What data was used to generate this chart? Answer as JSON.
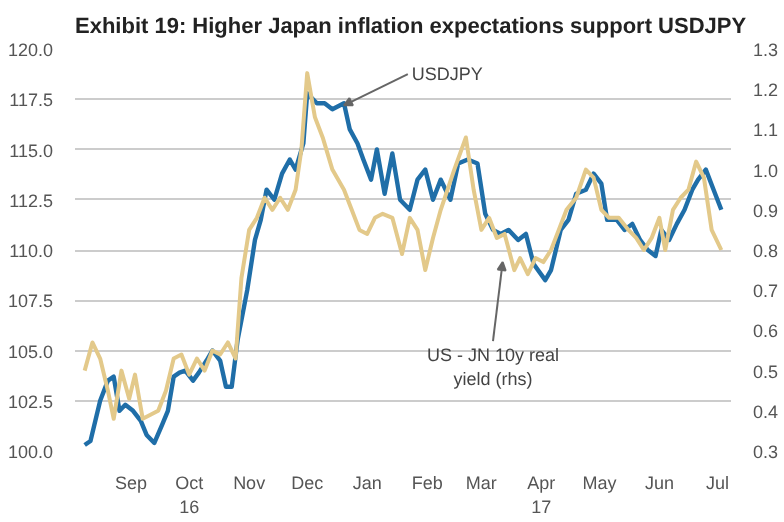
{
  "chart_data": {
    "type": "line",
    "title": "Exhibit 19: Higher Japan inflation expectations support USDJPY",
    "xlim": [
      "2016-08-17",
      "2017-07-22"
    ],
    "xticks": [
      {
        "value": "2016-09-15",
        "label": "Sep"
      },
      {
        "value": "2016-10-15",
        "label": "Oct\n16"
      },
      {
        "value": "2016-11-15",
        "label": "Nov"
      },
      {
        "value": "2016-12-15",
        "label": "Dec"
      },
      {
        "value": "2017-01-15",
        "label": "Jan"
      },
      {
        "value": "2017-02-15",
        "label": "Feb"
      },
      {
        "value": "2017-03-15",
        "label": "Mar"
      },
      {
        "value": "2017-04-15",
        "label": "Apr\n17"
      },
      {
        "value": "2017-05-15",
        "label": "May"
      },
      {
        "value": "2017-06-15",
        "label": "Jun"
      },
      {
        "value": "2017-07-15",
        "label": "Jul"
      }
    ],
    "ylim": [
      100,
      120
    ],
    "yticks": [
      {
        "value": 100,
        "label": "100.0"
      },
      {
        "value": 102.5,
        "label": "102.5"
      },
      {
        "value": 105,
        "label": "105.0"
      },
      {
        "value": 107.5,
        "label": "107.5"
      },
      {
        "value": 110,
        "label": "110.0"
      },
      {
        "value": 112.5,
        "label": "112.5"
      },
      {
        "value": 115,
        "label": "115.0"
      },
      {
        "value": 117.5,
        "label": "117.5"
      },
      {
        "value": 120,
        "label": "120.0"
      }
    ],
    "y2lim": [
      0.3,
      1.3
    ],
    "y2ticks": [
      0.3,
      0.4,
      0.5,
      0.6,
      0.7,
      0.8,
      0.9,
      {
        "value": 1,
        "label": "1.0"
      },
      1.1,
      1.2,
      1.3
    ],
    "grid": "y",
    "line_style": "solid",
    "marker": "none",
    "annotations": [
      {
        "text": "USDJPY",
        "x": "2017-01-03",
        "y": 117.2
      },
      {
        "text": "US - JN 10y real\nyield (rhs)",
        "x": "2017-03-26",
        "y": 109.4
      }
    ],
    "series": [
      {
        "color": "#1f6ea8",
        "x": [
          "2016-08-22",
          "2016-08-25",
          "2016-08-30",
          "2016-09-03",
          "2016-09-06",
          "2016-09-09",
          "2016-09-12",
          "2016-09-16",
          "2016-09-20",
          "2016-09-23",
          "2016-09-27",
          "2016-10-01",
          "2016-10-04",
          "2016-10-07",
          "2016-10-10",
          "2016-10-13",
          "2016-10-17",
          "2016-10-20",
          "2016-10-24",
          "2016-10-27",
          "2016-10-31",
          "2016-11-03",
          "2016-11-06",
          "2016-11-09",
          "2016-11-14",
          "2016-11-18",
          "2016-11-21",
          "2016-11-24",
          "2016-11-28",
          "2016-12-02",
          "2016-12-06",
          "2016-12-09",
          "2016-12-13",
          "2016-12-15",
          "2016-12-20",
          "2016-12-24",
          "2016-12-28",
          "2017-01-03",
          "2017-01-06",
          "2017-01-10",
          "2017-01-13",
          "2017-01-17",
          "2017-01-20",
          "2017-01-24",
          "2017-01-28",
          "2017-02-01",
          "2017-02-06",
          "2017-02-10",
          "2017-02-14",
          "2017-02-18",
          "2017-02-22",
          "2017-02-27",
          "2017-03-03",
          "2017-03-08",
          "2017-03-13",
          "2017-03-17",
          "2017-03-21",
          "2017-03-25",
          "2017-03-29",
          "2017-04-03",
          "2017-04-07",
          "2017-04-11",
          "2017-04-17",
          "2017-04-20",
          "2017-04-25",
          "2017-04-29",
          "2017-05-03",
          "2017-05-08",
          "2017-05-12",
          "2017-05-16",
          "2017-05-19",
          "2017-05-24",
          "2017-05-28",
          "2017-06-01",
          "2017-06-05",
          "2017-06-09",
          "2017-06-13",
          "2017-06-16",
          "2017-06-20",
          "2017-06-24",
          "2017-06-28",
          "2017-07-02",
          "2017-07-05",
          "2017-07-09",
          "2017-07-13",
          "2017-07-17"
        ],
        "values": [
          100.3,
          100.5,
          102.5,
          103.5,
          103.7,
          102.0,
          102.3,
          102.0,
          101.5,
          100.8,
          100.4,
          101.3,
          102.0,
          103.7,
          103.9,
          104.0,
          103.5,
          103.9,
          104.5,
          105.0,
          104.5,
          103.2,
          103.2,
          105.5,
          108.0,
          110.5,
          111.5,
          113.0,
          112.5,
          113.8,
          114.5,
          114.0,
          115.3,
          117.8,
          117.3,
          117.3,
          117.0,
          117.3,
          116.0,
          115.3,
          114.5,
          113.5,
          115.0,
          112.8,
          114.8,
          112.5,
          112.0,
          113.5,
          114.0,
          112.5,
          113.5,
          112.5,
          114.3,
          114.5,
          114.3,
          111.8,
          111.0,
          110.8,
          111.0,
          110.5,
          110.8,
          109.3,
          108.5,
          109.0,
          111.0,
          111.5,
          112.8,
          113.0,
          113.8,
          113.3,
          111.5,
          111.5,
          111.0,
          111.3,
          110.5,
          110.0,
          109.7,
          111.0,
          110.5,
          111.3,
          112.0,
          113.0,
          113.5,
          114.0,
          113.0,
          112.0
        ]
      },
      {
        "color": "#e3c98a",
        "axis": "y2",
        "x": [
          "2016-08-22",
          "2016-08-26",
          "2016-08-30",
          "2016-09-03",
          "2016-09-06",
          "2016-09-10",
          "2016-09-14",
          "2016-09-17",
          "2016-09-21",
          "2016-09-25",
          "2016-09-29",
          "2016-10-03",
          "2016-10-07",
          "2016-10-11",
          "2016-10-15",
          "2016-10-19",
          "2016-10-23",
          "2016-10-27",
          "2016-10-31",
          "2016-11-04",
          "2016-11-08",
          "2016-11-11",
          "2016-11-15",
          "2016-11-19",
          "2016-11-23",
          "2016-11-27",
          "2016-12-01",
          "2016-12-05",
          "2016-12-09",
          "2016-12-12",
          "2016-12-15",
          "2016-12-19",
          "2016-12-23",
          "2016-12-28",
          "2017-01-03",
          "2017-01-07",
          "2017-01-11",
          "2017-01-15",
          "2017-01-19",
          "2017-01-23",
          "2017-01-28",
          "2017-02-02",
          "2017-02-06",
          "2017-02-10",
          "2017-02-14",
          "2017-02-18",
          "2017-02-22",
          "2017-03-01",
          "2017-03-07",
          "2017-03-11",
          "2017-03-15",
          "2017-03-19",
          "2017-03-23",
          "2017-03-27",
          "2017-04-01",
          "2017-04-04",
          "2017-04-08",
          "2017-04-12",
          "2017-04-16",
          "2017-04-20",
          "2017-04-24",
          "2017-04-28",
          "2017-05-03",
          "2017-05-08",
          "2017-05-12",
          "2017-05-16",
          "2017-05-20",
          "2017-05-25",
          "2017-05-30",
          "2017-06-03",
          "2017-06-07",
          "2017-06-11",
          "2017-06-15",
          "2017-06-18",
          "2017-06-22",
          "2017-06-26",
          "2017-06-30",
          "2017-07-04",
          "2017-07-08",
          "2017-07-12",
          "2017-07-17"
        ],
        "values": [
          0.5,
          0.57,
          0.53,
          0.45,
          0.38,
          0.5,
          0.43,
          0.49,
          0.38,
          0.39,
          0.4,
          0.45,
          0.53,
          0.54,
          0.49,
          0.53,
          0.5,
          0.55,
          0.54,
          0.57,
          0.53,
          0.73,
          0.85,
          0.88,
          0.93,
          0.9,
          0.93,
          0.9,
          0.95,
          1.05,
          1.24,
          1.13,
          1.08,
          1.0,
          0.95,
          0.9,
          0.85,
          0.84,
          0.88,
          0.89,
          0.88,
          0.79,
          0.88,
          0.85,
          0.75,
          0.83,
          0.9,
          1.0,
          1.08,
          0.95,
          0.85,
          0.88,
          0.83,
          0.84,
          0.75,
          0.78,
          0.74,
          0.78,
          0.77,
          0.8,
          0.85,
          0.9,
          0.93,
          1.0,
          0.98,
          0.9,
          0.88,
          0.88,
          0.85,
          0.83,
          0.8,
          0.83,
          0.88,
          0.8,
          0.9,
          0.93,
          0.95,
          1.02,
          0.98,
          0.85,
          0.8
        ]
      }
    ]
  }
}
